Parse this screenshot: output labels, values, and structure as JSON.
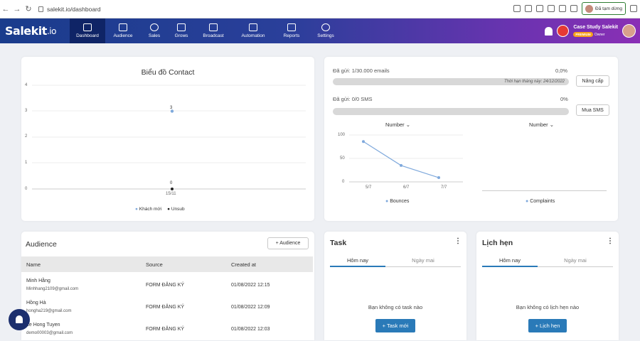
{
  "browser": {
    "url": "salekit.io/dashboard",
    "paused_label": "Đã tạm dừng"
  },
  "nav": {
    "logo": "Salekit",
    "logo_suffix": ".io",
    "items": [
      {
        "label": "Dashboard",
        "icon": "home-icon"
      },
      {
        "label": "Audience",
        "icon": "people-icon"
      },
      {
        "label": "Sales",
        "icon": "dollar-icon"
      },
      {
        "label": "Grows",
        "icon": "chart-line-icon"
      },
      {
        "label": "Broadcast",
        "icon": "megaphone-icon"
      },
      {
        "label": "Automation",
        "icon": "automation-icon"
      },
      {
        "label": "Reports",
        "icon": "bar-chart-icon"
      },
      {
        "label": "Settings",
        "icon": "gear-icon"
      }
    ],
    "account_name": "Case Study Salekit",
    "badge": "PREMIUM",
    "role": "Owner"
  },
  "contact_chart": {
    "title": "Biểu đồ Contact",
    "yticks": [
      "4",
      "3",
      "2",
      "1",
      "0"
    ],
    "xtick": "15/11",
    "label_top": "3",
    "label_bottom": "0",
    "legend": [
      "Khách mới",
      "Unsub"
    ]
  },
  "chart_data": [
    {
      "type": "line",
      "title": "Biểu đồ Contact",
      "categories": [
        "15/11"
      ],
      "series": [
        {
          "name": "Khách mới",
          "values": [
            3
          ]
        },
        {
          "name": "Unsub",
          "values": [
            0
          ]
        }
      ],
      "ylim": [
        0,
        4
      ],
      "legend": "bottom"
    },
    {
      "type": "line",
      "categories": [
        "5/7",
        "6/7",
        "7/7"
      ],
      "series": [
        {
          "name": "Bounces",
          "values": [
            86,
            35,
            9
          ]
        }
      ],
      "ylim": [
        0,
        100
      ],
      "legend": "bottom"
    },
    {
      "type": "line",
      "categories": [],
      "series": [
        {
          "name": "Complaints",
          "values": []
        }
      ],
      "legend": "bottom"
    }
  ],
  "usage": {
    "email_label": "Đã gửi: 1/30.000 emails",
    "email_pct": "0,0%",
    "expire": "Thời hạn tháng này: 24/12/2022",
    "upgrade": "Nâng cấp",
    "sms_label": "Đã gửi: 0/0 SMS",
    "sms_pct": "0%",
    "buy_sms": "Mua SMS",
    "dropdown1": "Number",
    "dropdown2": "Number",
    "yticks": [
      "100",
      "50",
      "0"
    ],
    "xticks": [
      "5/7",
      "6/7",
      "7/7"
    ],
    "legend1": "Bounces",
    "legend2": "Complaints"
  },
  "audience": {
    "title": "Audience",
    "add": "+ Audience",
    "cols": [
      "Name",
      "Source",
      "Created at"
    ],
    "rows": [
      {
        "name": "Minh Hằng",
        "email": "Minhhang2109@gmail.com",
        "source": "FORM ĐĂNG KÝ",
        "created": "01/08/2022 12:15"
      },
      {
        "name": "Hồng Hà",
        "email": "honghа219@gmail.com",
        "source": "FORM ĐĂNG KÝ",
        "created": "01/08/2022 12:09"
      },
      {
        "name": "Le Hong Tuyen",
        "email": "demo00003@gmail.com",
        "source": "FORM ĐĂNG KÝ",
        "created": "01/08/2022 12:03"
      }
    ]
  },
  "task": {
    "title": "Task",
    "tab1": "Hôm nay",
    "tab2": "Ngày mai",
    "empty": "Bạn không có task nào",
    "button": "+ Task mới"
  },
  "schedule": {
    "title": "Lịch hẹn",
    "tab1": "Hôm nay",
    "tab2": "Ngày mai",
    "empty": "Bạn không có lịch hẹn nào",
    "button": "+ Lịch hẹn"
  },
  "colors": {
    "accent": "#2a7ab8",
    "line": "#7fa9dc",
    "nav_start": "#1a3c8c",
    "nav_end": "#8a2fb5"
  }
}
